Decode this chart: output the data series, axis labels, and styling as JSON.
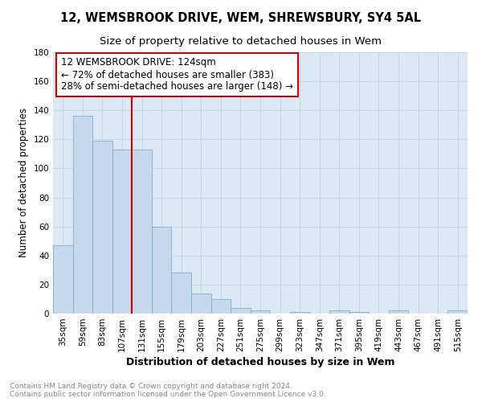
{
  "title1": "12, WEMSBROOK DRIVE, WEM, SHREWSBURY, SY4 5AL",
  "title2": "Size of property relative to detached houses in Wem",
  "xlabel": "Distribution of detached houses by size in Wem",
  "ylabel": "Number of detached properties",
  "categories": [
    "35sqm",
    "59sqm",
    "83sqm",
    "107sqm",
    "131sqm",
    "155sqm",
    "179sqm",
    "203sqm",
    "227sqm",
    "251sqm",
    "275sqm",
    "299sqm",
    "323sqm",
    "347sqm",
    "371sqm",
    "395sqm",
    "419sqm",
    "443sqm",
    "467sqm",
    "491sqm",
    "515sqm"
  ],
  "values": [
    47,
    136,
    119,
    113,
    113,
    60,
    28,
    14,
    10,
    4,
    2,
    0,
    1,
    0,
    2,
    1,
    0,
    2,
    0,
    0,
    2
  ],
  "bar_color": "#c6d9ec",
  "bar_edge_color": "#7aafd4",
  "ref_line_index": 4,
  "ref_line_color": "#cc0000",
  "annotation_text": "12 WEMSBROOK DRIVE: 124sqm\n← 72% of detached houses are smaller (383)\n28% of semi-detached houses are larger (148) →",
  "annotation_box_color": "#cc0000",
  "ylim": [
    0,
    180
  ],
  "yticks": [
    0,
    20,
    40,
    60,
    80,
    100,
    120,
    140,
    160,
    180
  ],
  "grid_color": "#c8d4e8",
  "background_color": "#dce8f4",
  "footer_text": "Contains HM Land Registry data © Crown copyright and database right 2024.\nContains public sector information licensed under the Open Government Licence v3.0.",
  "title1_fontsize": 10.5,
  "title2_fontsize": 9.5,
  "xlabel_fontsize": 9,
  "ylabel_fontsize": 8.5,
  "tick_fontsize": 7.5,
  "annotation_fontsize": 8.5,
  "footer_fontsize": 6.5
}
